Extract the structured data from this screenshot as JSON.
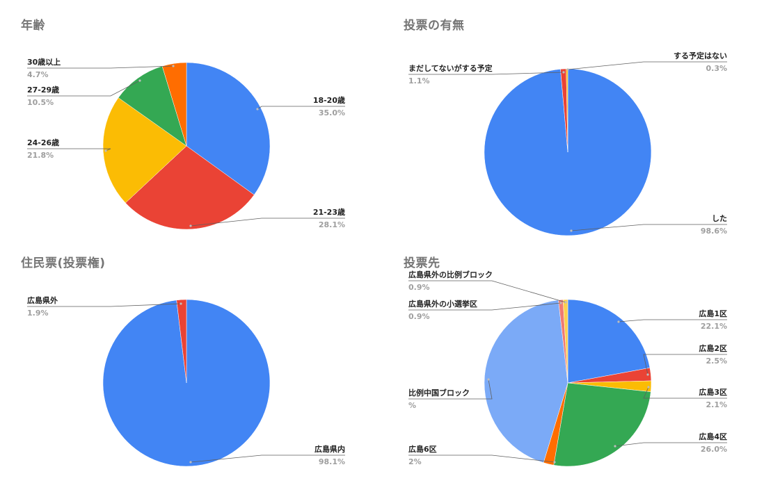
{
  "chart_data": [
    {
      "type": "pie",
      "title": "年齢",
      "slices": [
        {
          "label": "18-20歳",
          "value_text": "35.0%",
          "value": 35.0,
          "color": "#4285f4"
        },
        {
          "label": "21-23歳",
          "value_text": "28.1%",
          "value": 28.1,
          "color": "#ea4335"
        },
        {
          "label": "24-26歳",
          "value_text": "21.8%",
          "value": 21.8,
          "color": "#fbbc04"
        },
        {
          "label": "27-29歳",
          "value_text": "10.5%",
          "value": 10.5,
          "color": "#34a853"
        },
        {
          "label": "30歳以上",
          "value_text": "4.7%",
          "value": 4.7,
          "color": "#ff6d01"
        }
      ]
    },
    {
      "type": "pie",
      "title": "投票の有無",
      "slices": [
        {
          "label": "した",
          "value_text": "98.6%",
          "value": 98.6,
          "color": "#4285f4"
        },
        {
          "label": "まだしてないがする予定",
          "value_text": "1.1%",
          "value": 1.1,
          "color": "#ea4335"
        },
        {
          "label": "する予定はない",
          "value_text": "0.3%",
          "value": 0.3,
          "color": "#fbbc04"
        }
      ]
    },
    {
      "type": "pie",
      "title": "住民票(投票権)",
      "slices": [
        {
          "label": "広島県内",
          "value_text": "98.1%",
          "value": 98.1,
          "color": "#4285f4"
        },
        {
          "label": "広島県外",
          "value_text": "1.9%",
          "value": 1.9,
          "color": "#ea4335"
        }
      ]
    },
    {
      "type": "pie",
      "title": "投票先",
      "slices": [
        {
          "label": "広島1区",
          "value_text": "22.1%",
          "value": 22.1,
          "color": "#4285f4"
        },
        {
          "label": "広島2区",
          "value_text": "2.5%",
          "value": 2.5,
          "color": "#ea4335"
        },
        {
          "label": "広島3区",
          "value_text": "2.1%",
          "value": 2.1,
          "color": "#fbbc04"
        },
        {
          "label": "広島4区",
          "value_text": "26.0%",
          "value": 26.0,
          "color": "#34a853"
        },
        {
          "label": "広島6区",
          "value_text": "2%",
          "value": 2.0,
          "color": "#ff6d01"
        },
        {
          "label": "比例中国ブロック",
          "value_text": "%",
          "value": 43.5,
          "color": "#7baaf7"
        },
        {
          "label": "広島県外の小選挙区",
          "value_text": "0.9%",
          "value": 0.9,
          "color": "#f07b72"
        },
        {
          "label": "広島県外の比例ブロック",
          "value_text": "0.9%",
          "value": 0.9,
          "color": "#fcd04f"
        }
      ]
    }
  ]
}
